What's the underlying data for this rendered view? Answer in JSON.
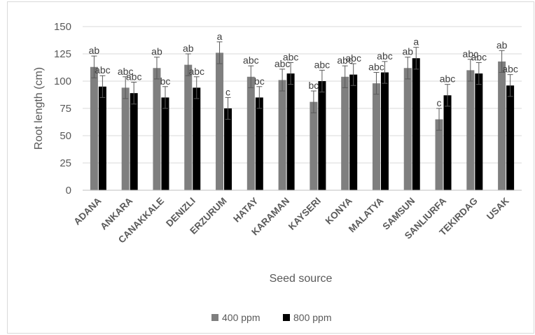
{
  "chart_data": {
    "type": "bar",
    "xlabel": "Seed source",
    "ylabel": "Root length (cm)",
    "ylim": [
      0,
      150
    ],
    "yticks": [
      0,
      25,
      50,
      75,
      100,
      125,
      150
    ],
    "grid": true,
    "legend_position": "bottom",
    "categories": [
      "ADANA",
      "ANKARA",
      "CANAKKALE",
      "DENIZLI",
      "ERZURUM",
      "HATAY",
      "KARAMAN",
      "KAYSERI",
      "KONYA",
      "MALATYA",
      "SAMSUN",
      "SANLIURFA",
      "TEKIRDAG",
      "USAK"
    ],
    "series": [
      {
        "name": "400 ppm",
        "color": "#7f7f7f",
        "values": [
          113,
          94,
          112,
          115,
          126,
          104,
          101,
          81,
          104,
          98,
          112,
          65,
          110,
          118
        ],
        "errors": [
          10,
          10,
          10,
          10,
          10,
          10,
          10,
          10,
          10,
          10,
          10,
          10,
          10,
          10
        ],
        "labels": [
          "ab",
          "abc",
          "ab",
          "ab",
          "a",
          "abc",
          "abc",
          "bc",
          "abc",
          "abc",
          "ab",
          "c",
          "abc",
          "ab"
        ]
      },
      {
        "name": "800 ppm",
        "color": "#000000",
        "values": [
          95,
          89,
          85,
          94,
          75,
          85,
          107,
          100,
          106,
          108,
          121,
          87,
          107,
          96
        ],
        "errors": [
          10,
          10,
          10,
          10,
          10,
          10,
          10,
          10,
          10,
          10,
          10,
          10,
          10,
          10
        ],
        "labels": [
          "abc",
          "abc",
          "bc",
          "abc",
          "c",
          "bc",
          "abc",
          "abc",
          "abc",
          "abc",
          "a",
          "abc",
          "abc",
          "abc"
        ]
      }
    ]
  }
}
